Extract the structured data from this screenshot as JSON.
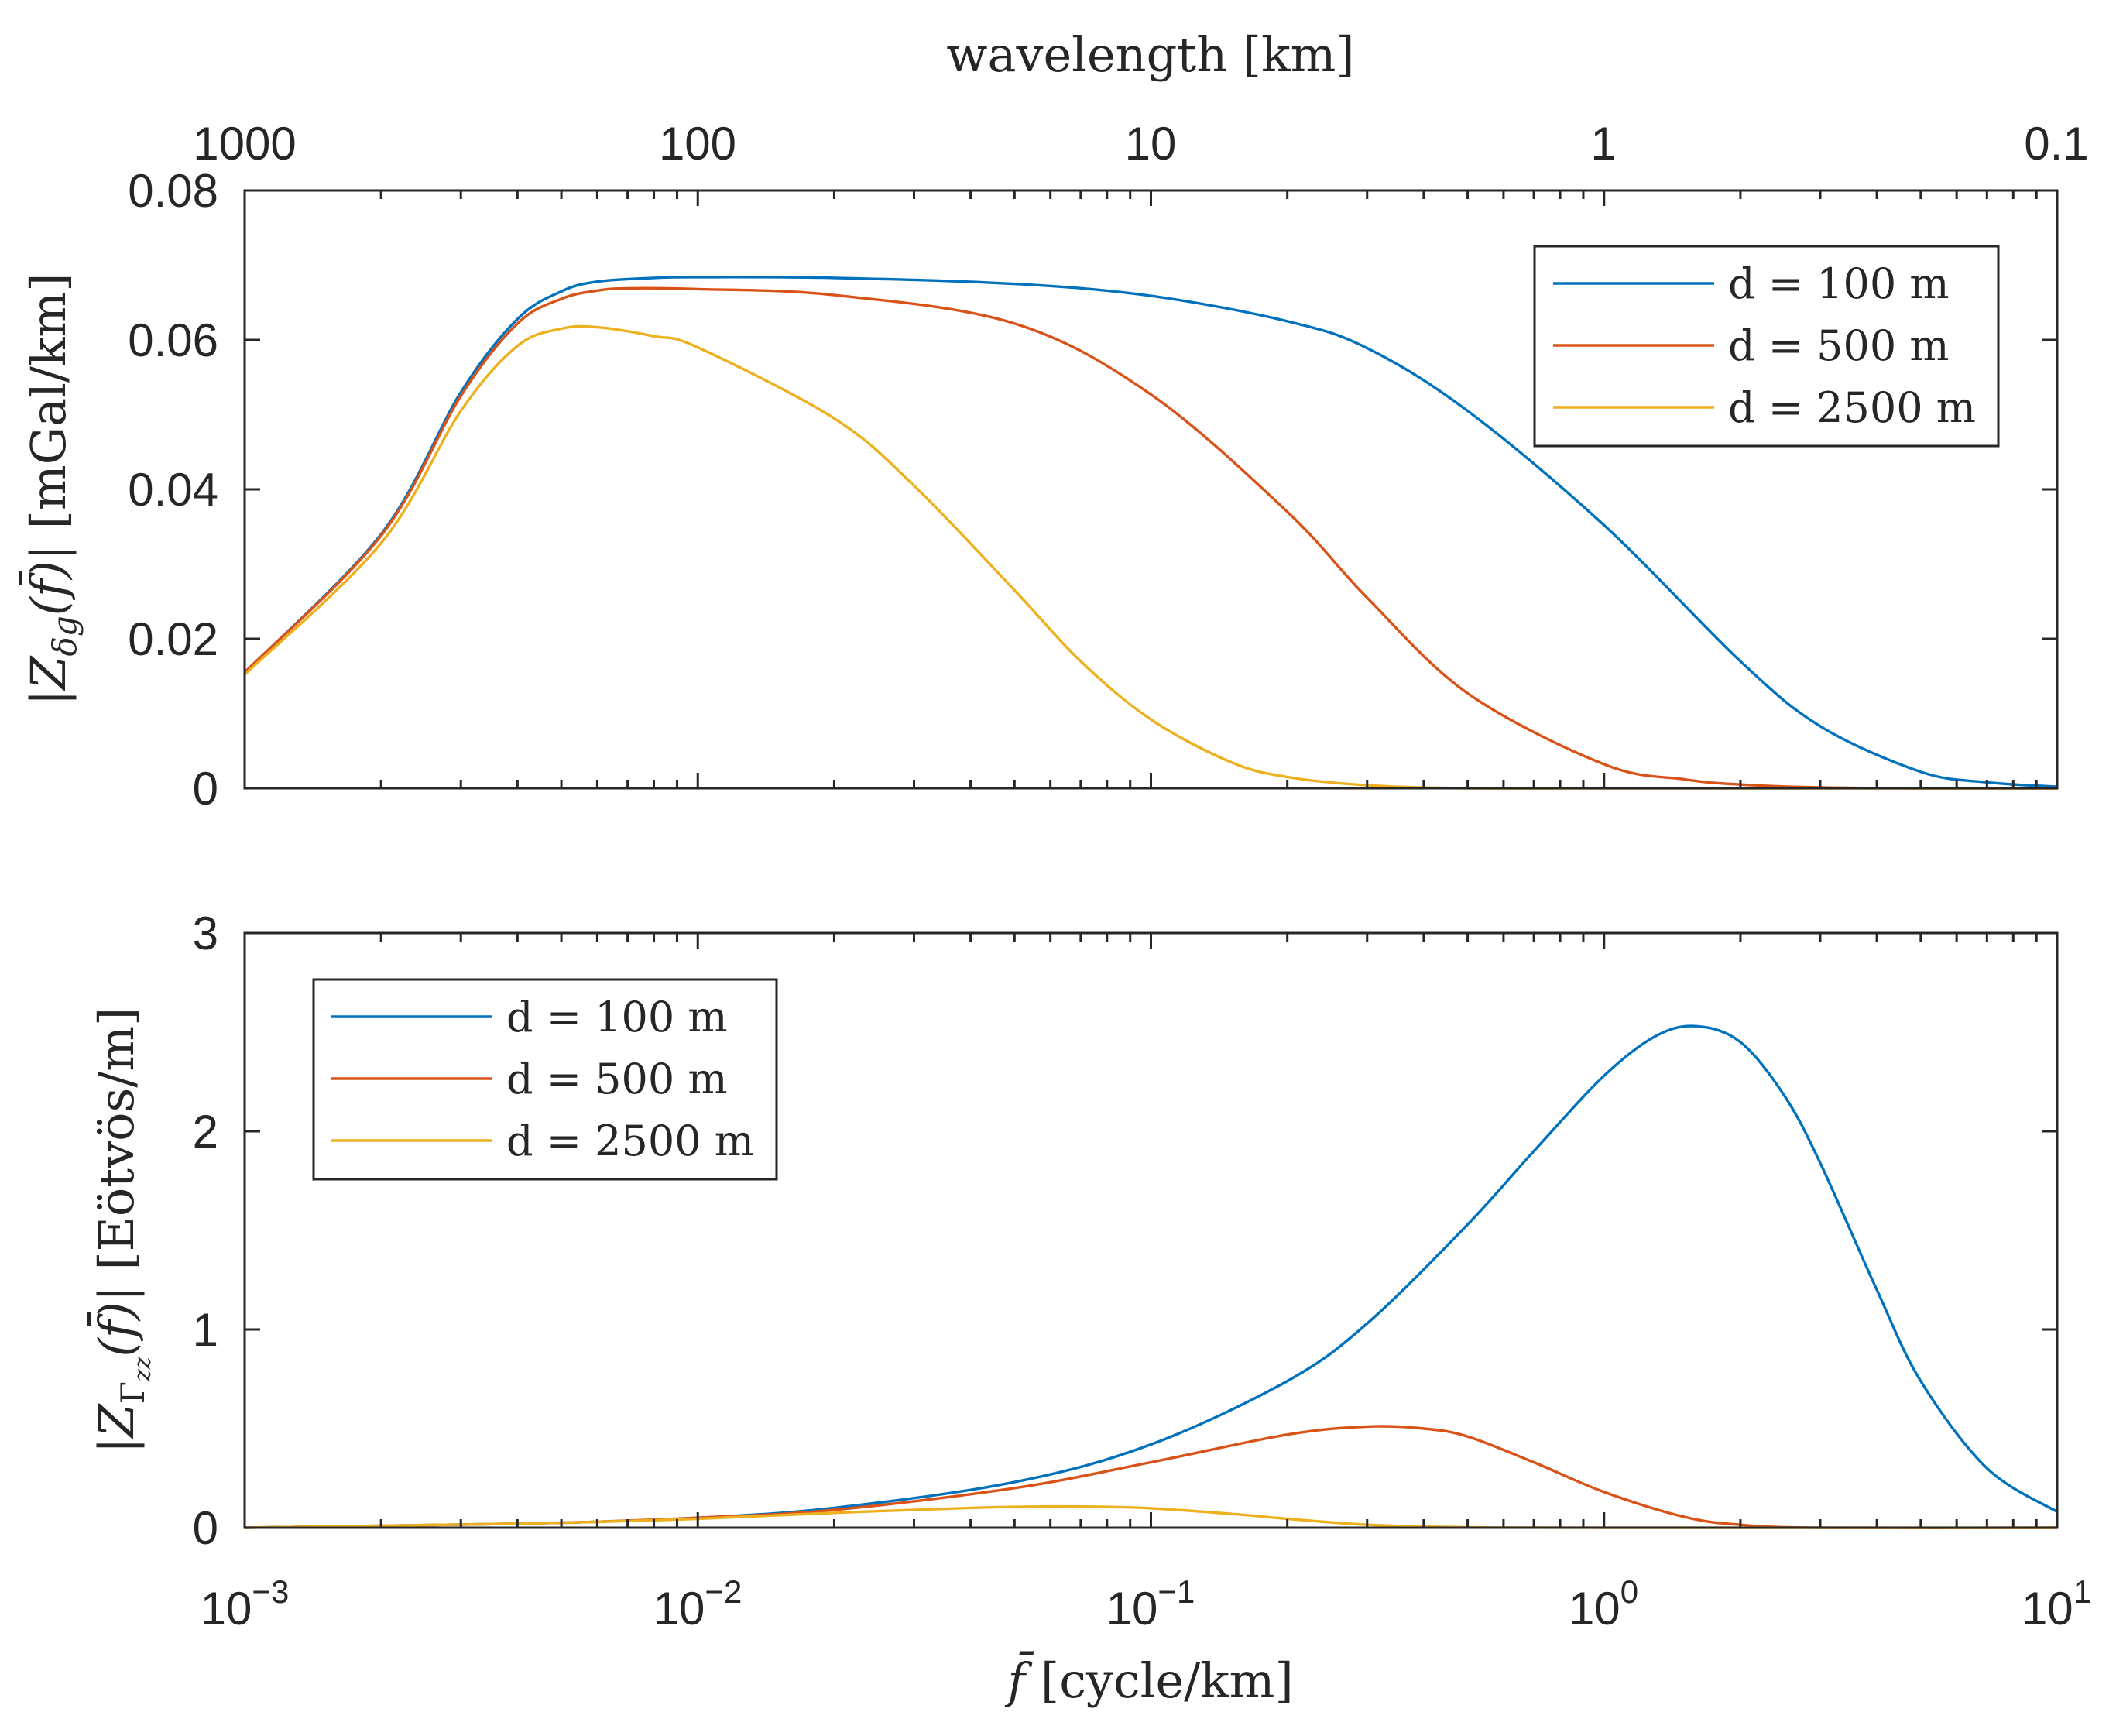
{
  "chart_data": [
    {
      "type": "line",
      "panel": "top",
      "xscale": "log",
      "xlim": [
        0.001,
        10
      ],
      "ylim": [
        0,
        0.08
      ],
      "yticks": [
        "0",
        "0.02",
        "0.04",
        "0.06",
        "0.08"
      ],
      "ylabel_parts": {
        "pre": "|Z",
        "sub": "δg",
        "mid": "(f̄)| ",
        "unit": "[mGal/km]"
      },
      "top_axis": {
        "title": "wavelength [km]",
        "ticks": [
          "1000",
          "100",
          "10",
          "1",
          "0.1"
        ],
        "positions_f": [
          0.001,
          0.01,
          0.1,
          1,
          10
        ]
      },
      "legend": {
        "position": "top-right",
        "entries": [
          "d = 100 m",
          "d = 500 m",
          "d = 2500 m"
        ]
      },
      "series": [
        {
          "name": "d = 100 m",
          "color": "#0072BD",
          "x": [
            0.001,
            0.002,
            0.003,
            0.004,
            0.005,
            0.006,
            0.008,
            0.01,
            0.02,
            0.05,
            0.1,
            0.2,
            0.3,
            0.5,
            1,
            2,
            3,
            5,
            7,
            10
          ],
          "y": [
            0.0155,
            0.034,
            0.053,
            0.0628,
            0.0665,
            0.0678,
            0.0683,
            0.0684,
            0.0683,
            0.0675,
            0.0659,
            0.0625,
            0.0589,
            0.0505,
            0.0352,
            0.017,
            0.0083,
            0.0022,
            0.0008,
            0.0002
          ]
        },
        {
          "name": "d = 500 m",
          "color": "#D95319",
          "x": [
            0.001,
            0.002,
            0.003,
            0.004,
            0.005,
            0.006,
            0.007,
            0.01,
            0.02,
            0.05,
            0.1,
            0.2,
            0.3,
            0.5,
            1,
            1.5,
            2,
            3,
            5,
            10
          ],
          "y": [
            0.0155,
            0.0338,
            0.0525,
            0.0622,
            0.0655,
            0.0666,
            0.0669,
            0.0668,
            0.066,
            0.0622,
            0.0527,
            0.037,
            0.0255,
            0.0127,
            0.0032,
            0.0012,
            0.0005,
            0.0001,
            0.0,
            0.0
          ]
        },
        {
          "name": "d = 2500 m",
          "color": "#EDB120",
          "x": [
            0.001,
            0.002,
            0.003,
            0.004,
            0.005,
            0.006,
            0.008,
            0.01,
            0.02,
            0.03,
            0.05,
            0.07,
            0.1,
            0.15,
            0.2,
            0.3,
            0.5,
            1,
            10
          ],
          "y": [
            0.0152,
            0.0328,
            0.0505,
            0.0592,
            0.0615,
            0.0617,
            0.0605,
            0.059,
            0.0495,
            0.0405,
            0.0265,
            0.017,
            0.0092,
            0.0035,
            0.0015,
            0.0004,
            0.0,
            0.0,
            0.0
          ]
        }
      ]
    },
    {
      "type": "line",
      "panel": "bottom",
      "xscale": "log",
      "xlim": [
        0.001,
        10
      ],
      "ylim": [
        0,
        3
      ],
      "xtick_base": "10",
      "xtick_exponents": [
        "−3",
        "−2",
        "−1",
        "0",
        "1"
      ],
      "yticks": [
        "0",
        "1",
        "2",
        "3"
      ],
      "xlabel_parts": {
        "sym": "f̄",
        "unit": " [cycle/km]"
      },
      "ylabel_parts": {
        "pre": "|Z",
        "sub": "Γ",
        "subsub": "zz",
        "mid": "(f̄)| ",
        "unit": "[Eötvös/m]"
      },
      "legend": {
        "position": "top-left",
        "entries": [
          "d = 100 m",
          "d = 500 m",
          "d = 2500 m"
        ]
      },
      "series": [
        {
          "name": "d = 100 m",
          "color": "#0072BD",
          "x": [
            0.001,
            0.002,
            0.005,
            0.01,
            0.02,
            0.05,
            0.1,
            0.2,
            0.3,
            0.5,
            0.7,
            1,
            1.3,
            1.6,
            2,
            2.5,
            3,
            4,
            5,
            7,
            10
          ],
          "y": [
            0.0,
            0.01,
            0.025,
            0.05,
            0.1,
            0.23,
            0.42,
            0.74,
            1.03,
            1.53,
            1.9,
            2.28,
            2.48,
            2.53,
            2.45,
            2.18,
            1.84,
            1.2,
            0.74,
            0.3,
            0.08
          ]
        },
        {
          "name": "d = 500 m",
          "color": "#D95319",
          "x": [
            0.001,
            0.002,
            0.005,
            0.01,
            0.02,
            0.05,
            0.1,
            0.2,
            0.3,
            0.4,
            0.5,
            0.7,
            1,
            1.5,
            2,
            3,
            10
          ],
          "y": [
            0.0,
            0.01,
            0.025,
            0.05,
            0.09,
            0.2,
            0.33,
            0.47,
            0.51,
            0.5,
            0.46,
            0.33,
            0.18,
            0.055,
            0.015,
            0.0,
            0.0
          ]
        },
        {
          "name": "d = 2500 m",
          "color": "#EDB120",
          "x": [
            0.001,
            0.002,
            0.005,
            0.01,
            0.02,
            0.04,
            0.06,
            0.08,
            0.1,
            0.15,
            0.2,
            0.3,
            0.5,
            1,
            10
          ],
          "y": [
            0.0,
            0.01,
            0.025,
            0.045,
            0.075,
            0.1,
            0.107,
            0.105,
            0.098,
            0.07,
            0.045,
            0.015,
            0.002,
            0.0,
            0.0
          ]
        }
      ]
    }
  ]
}
